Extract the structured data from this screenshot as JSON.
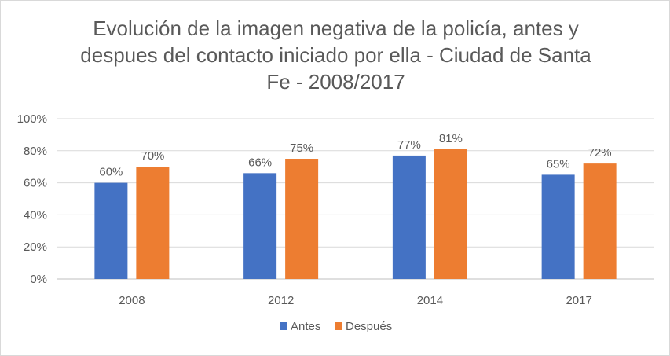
{
  "chart_data": {
    "type": "bar",
    "title_lines": [
      "Evolución de la imagen negativa de la policía, antes y",
      "despues del contacto iniciado por ella - Ciudad de Santa",
      "Fe - 2008/2017"
    ],
    "categories": [
      "2008",
      "2012",
      "2014",
      "2017"
    ],
    "series": [
      {
        "name": "Antes",
        "color": "#4472c4",
        "values": [
          60,
          66,
          77,
          65
        ],
        "labels": [
          "60%",
          "66%",
          "77%",
          "65%"
        ]
      },
      {
        "name": "Después",
        "color": "#ed7d31",
        "values": [
          70,
          75,
          81,
          72
        ],
        "labels": [
          "70%",
          "75%",
          "81%",
          "72%"
        ]
      }
    ],
    "y_ticks": [
      "0%",
      "20%",
      "40%",
      "60%",
      "80%",
      "100%"
    ],
    "ylim": [
      0,
      100
    ],
    "grid": true,
    "legend": "bottom"
  }
}
